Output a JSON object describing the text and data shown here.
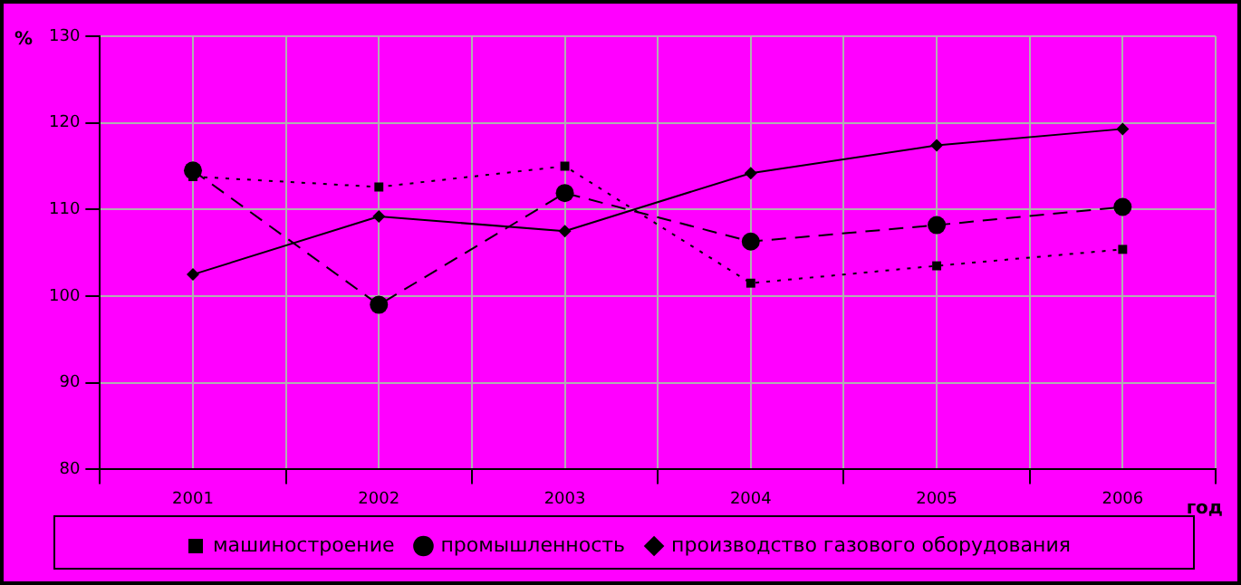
{
  "chart_data": {
    "type": "line",
    "xlabel": "год",
    "ylabel": "%",
    "categories": [
      "2001",
      "2002",
      "2003",
      "2004",
      "2005",
      "2006"
    ],
    "series": [
      {
        "name": "промышленность",
        "color": "#000000",
        "values": [
          114.5,
          99.0,
          111.9,
          106.3,
          108.2,
          110.3
        ],
        "marker": "circle",
        "line_style": "dashed"
      },
      {
        "name": "машиностроение",
        "color": "#000000",
        "values": [
          113.8,
          112.6,
          115.0,
          101.5,
          103.5,
          105.4
        ],
        "marker": "square",
        "line_style": "dotted"
      },
      {
        "name": "производство газового оборудования",
        "color": "#000000",
        "values": [
          102.5,
          109.2,
          107.5,
          114.2,
          117.4,
          119.3
        ],
        "marker": "diamond",
        "line_style": "solid"
      }
    ],
    "ylim": [
      80,
      130
    ],
    "yticks": [
      80,
      90,
      100,
      110,
      120,
      130
    ],
    "grid": true,
    "legend": "bottom"
  }
}
